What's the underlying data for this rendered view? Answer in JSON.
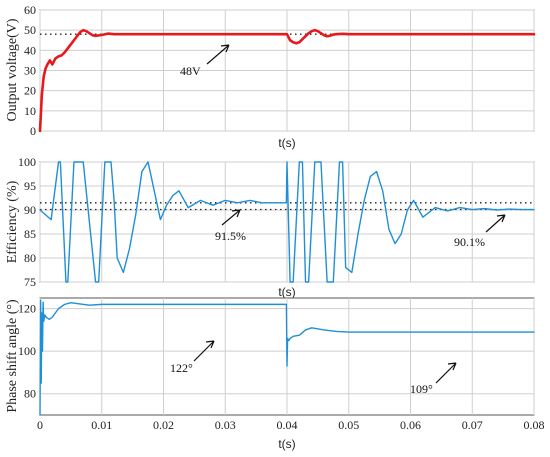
{
  "chart_data": [
    {
      "type": "line",
      "ylabel": "Output voltage(V)",
      "xlabel": "t(s)",
      "xlim": [
        0,
        0.08
      ],
      "ylim": [
        0,
        60
      ],
      "yticks": [
        0,
        10,
        20,
        30,
        40,
        50,
        60
      ],
      "xticks": [],
      "grid": true,
      "series": [
        {
          "color": "#e8191c",
          "x": [
            0,
            0.0003,
            0.0006,
            0.0009,
            0.0012,
            0.0016,
            0.002,
            0.0025,
            0.003,
            0.0035,
            0.004,
            0.0045,
            0.005,
            0.0055,
            0.006,
            0.0065,
            0.007,
            0.0075,
            0.008,
            0.0085,
            0.009,
            0.01,
            0.011,
            0.012,
            0.014,
            0.016,
            0.02,
            0.025,
            0.03,
            0.035,
            0.038,
            0.04,
            0.0405,
            0.041,
            0.0415,
            0.042,
            0.0425,
            0.043,
            0.0435,
            0.044,
            0.0445,
            0.045,
            0.0455,
            0.046,
            0.0465,
            0.047,
            0.0475,
            0.048,
            0.049,
            0.05,
            0.055,
            0.06,
            0.065,
            0.07,
            0.075,
            0.08
          ],
          "y": [
            0,
            18,
            27,
            31,
            33,
            35,
            33,
            36,
            37,
            37.5,
            39,
            41,
            43,
            45,
            47,
            49,
            50,
            49.5,
            48.5,
            47.5,
            47.2,
            47.6,
            48.3,
            48,
            48,
            48,
            48,
            48,
            48,
            48,
            48,
            48,
            45,
            44,
            43.5,
            44,
            45.5,
            47,
            48.5,
            49.5,
            50,
            49.5,
            48.5,
            47.5,
            47,
            47.3,
            47.8,
            48,
            48.2,
            48,
            48,
            48,
            48,
            48,
            48,
            48
          ]
        }
      ],
      "reference_lines": [
        48
      ],
      "annotations": [
        {
          "text": "48V"
        }
      ]
    },
    {
      "type": "line",
      "ylabel": "Efficiency (%)",
      "xlabel": "t(s)",
      "xlim": [
        0,
        0.08
      ],
      "ylim": [
        75,
        100
      ],
      "yticks": [
        75,
        80,
        85,
        90,
        95,
        100
      ],
      "xticks": [],
      "grid": true,
      "series": [
        {
          "color": "#1f8fd6",
          "x": [
            0,
            0.0018,
            0.003,
            0.0033,
            0.0042,
            0.0045,
            0.0055,
            0.007,
            0.009,
            0.0095,
            0.0105,
            0.0115,
            0.012,
            0.0125,
            0.0135,
            0.0145,
            0.0155,
            0.0165,
            0.0175,
            0.0185,
            0.0195,
            0.0205,
            0.0215,
            0.0225,
            0.024,
            0.026,
            0.028,
            0.03,
            0.032,
            0.034,
            0.036,
            0.038,
            0.0399,
            0.04,
            0.0405,
            0.041,
            0.042,
            0.0425,
            0.043,
            0.0435,
            0.0445,
            0.0455,
            0.0465,
            0.0475,
            0.0485,
            0.049,
            0.0495,
            0.0505,
            0.0515,
            0.0525,
            0.0535,
            0.0545,
            0.0555,
            0.0565,
            0.0575,
            0.0585,
            0.0595,
            0.0605,
            0.062,
            0.064,
            0.066,
            0.068,
            0.07,
            0.072,
            0.074,
            0.076,
            0.078,
            0.08
          ],
          "y": [
            90,
            88,
            100,
            100,
            75,
            75,
            100,
            100,
            75,
            75,
            100,
            100,
            92,
            80,
            77,
            82,
            89,
            98,
            100,
            94,
            88,
            91,
            93,
            94,
            90.5,
            92,
            91,
            92,
            91.5,
            92,
            91.5,
            91.5,
            91.5,
            100,
            75,
            75,
            100,
            100,
            75,
            75,
            100,
            100,
            75,
            75,
            100,
            100,
            78,
            77,
            85,
            92,
            97,
            98,
            94,
            86,
            83,
            85,
            90,
            92,
            88.5,
            90.5,
            89.8,
            90.5,
            90.1,
            90.3,
            90,
            90.2,
            90.1,
            90.1
          ]
        }
      ],
      "reference_lines": [
        91.5,
        90.1
      ],
      "annotations": [
        {
          "text": "91.5%"
        },
        {
          "text": "90.1%"
        }
      ]
    },
    {
      "type": "line",
      "ylabel": "Phase shift angle (°)",
      "xlabel": "t(s)",
      "xlim": [
        0,
        0.08
      ],
      "ylim": [
        70,
        125
      ],
      "yticks": [
        80,
        100,
        120
      ],
      "xticks": [
        "0",
        "0.01",
        "0.02",
        "0.03",
        "0.04",
        "0.05",
        "0.06",
        "0.07",
        "0.08"
      ],
      "grid": true,
      "series": [
        {
          "color": "#1f8fd6",
          "x": [
            0,
            0.0001,
            0.0002,
            0.0003,
            0.0004,
            0.0005,
            0.0006,
            0.0008,
            0.001,
            0.0015,
            0.002,
            0.0025,
            0.003,
            0.0035,
            0.004,
            0.005,
            0.006,
            0.008,
            0.01,
            0.015,
            0.02,
            0.025,
            0.03,
            0.035,
            0.0399,
            0.04,
            0.0401,
            0.0403,
            0.0405,
            0.041,
            0.042,
            0.043,
            0.044,
            0.046,
            0.048,
            0.05,
            0.055,
            0.06,
            0.065,
            0.07,
            0.075,
            0.08
          ],
          "y": [
            70,
            124,
            85,
            118,
            100,
            123,
            114,
            117,
            116,
            115,
            116,
            118,
            120,
            121,
            122,
            122.8,
            122.4,
            121.6,
            122,
            122,
            122,
            122,
            122,
            122,
            122,
            93,
            106,
            105,
            106,
            107,
            107.5,
            110,
            111,
            110,
            109.3,
            109,
            109,
            109,
            109,
            109,
            109,
            109
          ]
        }
      ],
      "annotations": [
        {
          "text": "122°"
        },
        {
          "text": "109°"
        }
      ]
    }
  ]
}
